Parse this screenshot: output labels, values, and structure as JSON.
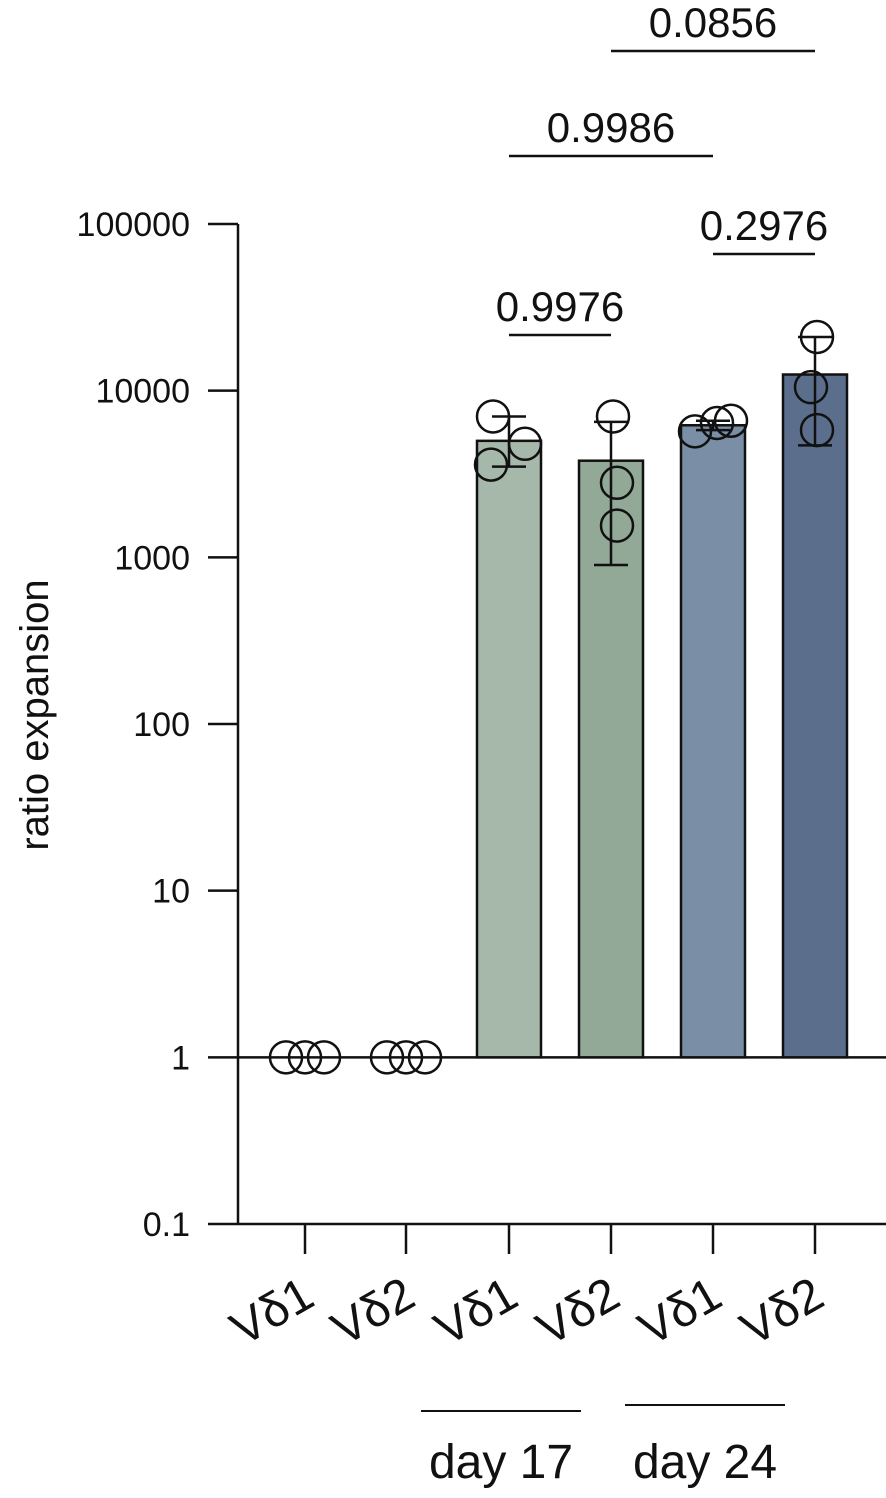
{
  "chart_data": {
    "type": "bar",
    "ylabel": "ratio expansion",
    "yscale": "log",
    "ylim": [
      0.1,
      100000
    ],
    "yticks": [
      "100000",
      "10000",
      "1000",
      "100",
      "10",
      "1",
      "0.1"
    ],
    "categories": [
      "Vδ1",
      "Vδ2",
      "Vδ1",
      "Vδ2",
      "Vδ1",
      "Vδ2"
    ],
    "bar_values": [
      1,
      1,
      5000,
      3800,
      6200,
      12500
    ],
    "error_low": [
      1,
      1,
      3500,
      900,
      5800,
      4700
    ],
    "error_high": [
      1,
      1,
      7000,
      6500,
      6600,
      21000
    ],
    "points": [
      [
        1,
        1,
        1
      ],
      [
        1,
        1,
        1
      ],
      [
        7000,
        3600,
        4800
      ],
      [
        7000,
        2800,
        1550
      ],
      [
        5700,
        6400,
        6600
      ],
      [
        21000,
        10500,
        5800
      ]
    ],
    "groups": [
      {
        "label": "day 17",
        "categories": [
          2,
          3
        ]
      },
      {
        "label": "day 24",
        "categories": [
          4,
          5
        ]
      }
    ],
    "comparisons": [
      {
        "label": "0.9976",
        "from": 2,
        "to": 3
      },
      {
        "label": "0.2976",
        "from": 4,
        "to": 5
      },
      {
        "label": "0.9986",
        "from": 2,
        "to": 4
      },
      {
        "label": "0.0856",
        "from": 3,
        "to": 5
      }
    ],
    "colors": [
      "#ffffff",
      "#ffffff",
      "#a6b8aa",
      "#91a996",
      "#7a8ea5",
      "#5b6f8c"
    ]
  }
}
